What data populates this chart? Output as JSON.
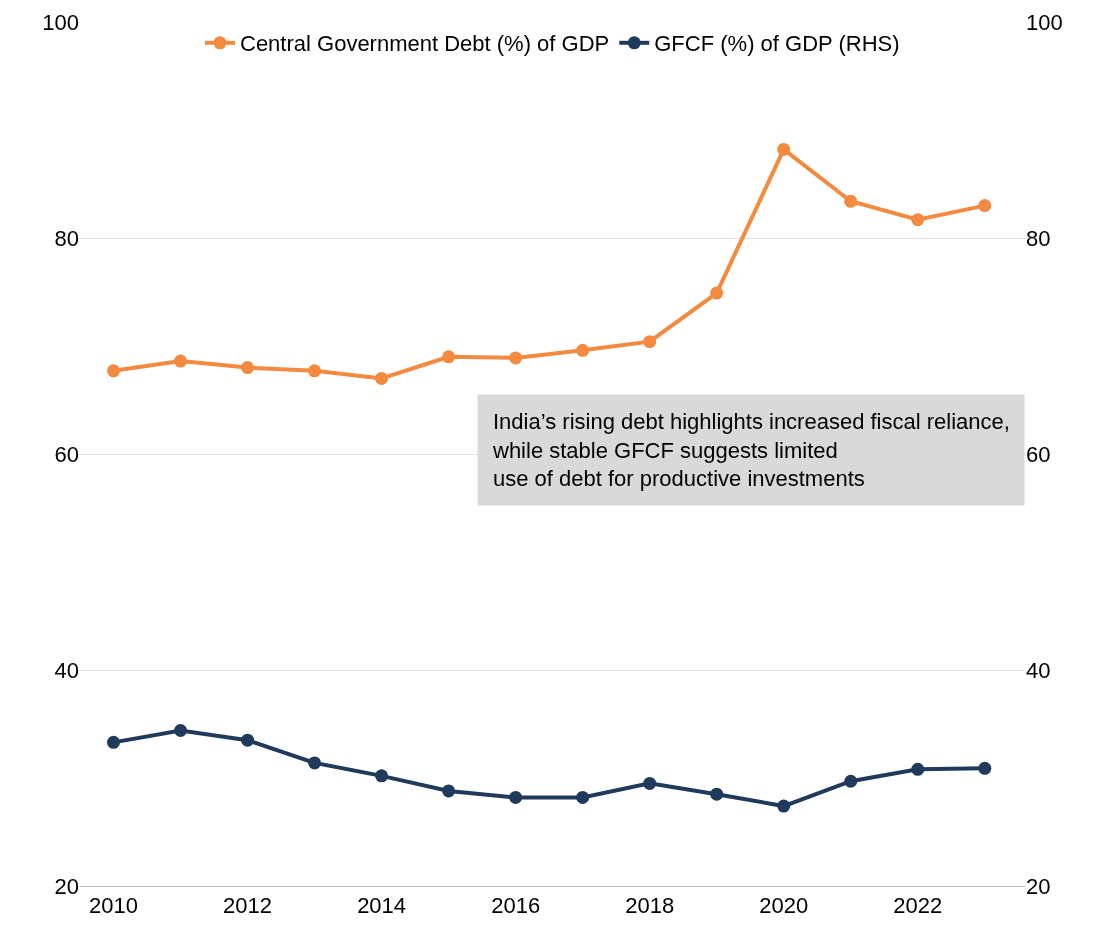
{
  "chart_data": {
    "type": "line",
    "x": [
      2010,
      2011,
      2012,
      2013,
      2014,
      2015,
      2016,
      2017,
      2018,
      2019,
      2020,
      2021,
      2022,
      2023
    ],
    "series": [
      {
        "name": "Central Government Debt (%) of GDP",
        "color": "#f38a3f",
        "values": [
          67.7,
          68.6,
          68.0,
          67.7,
          67.0,
          69.0,
          68.9,
          69.6,
          70.4,
          74.9,
          88.2,
          83.4,
          81.7,
          83.0
        ]
      },
      {
        "name": "GFCF (%) of GDP (RHS)",
        "color": "#1f3a5a",
        "axis": "y2",
        "values": [
          33.3,
          34.4,
          33.5,
          31.4,
          30.2,
          28.8,
          28.2,
          28.2,
          29.5,
          28.5,
          27.4,
          29.7,
          30.8,
          30.9
        ]
      }
    ],
    "xlim": [
      2009.5,
      2023.6
    ],
    "xticks": [
      2010,
      2012,
      2014,
      2016,
      2018,
      2020,
      2022
    ],
    "ylim": [
      20,
      100
    ],
    "yticks": [
      20,
      40,
      60,
      80,
      100
    ],
    "y2lim": [
      20,
      100
    ],
    "y2ticks": [
      20,
      40,
      60,
      80,
      100
    ],
    "grid": "y",
    "legend": "top",
    "marker": "circle",
    "line_style": "solid",
    "annotations": [
      "India’s rising debt highlights increased fiscal reliance, while stable GFCF suggests limited use of debt for productive investments"
    ]
  }
}
